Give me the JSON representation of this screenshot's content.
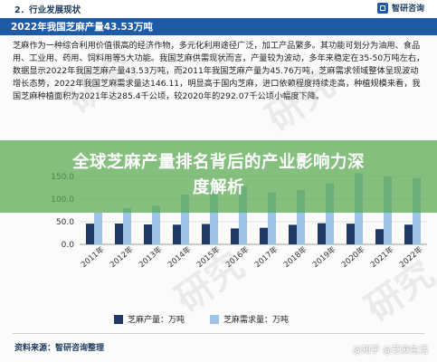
{
  "header": {
    "section_title": "2．行业发展现状",
    "brand": "智研咨询",
    "title": "2022年我国芝麻产量43.53万吨"
  },
  "body_text": "芝麻作为一种综合利用价值很高的经济作物，多元化利用途径广泛，加工产品繁多。其功能可划分为油用、食品用、工业用、药用、饲料用等5大功能。我国芝麻供需现状而言，产量较为波动，多年来稳定在35-50万吨左右，数据显示2022年我国芝麻产量43.53万吨，而2011年我国芝麻产量为45.76万吨，芝麻需求领域整体呈现波动增长态势，2022年我国芝麻需求量达146.11，明显高于国内芝麻，进口依赖程度持续走高，种植规模来看，我国芝麻种植面积为2021年达285.4千公顷，较2020年的292.07千公顷小幅度下降。",
  "overlay_title": "全球芝麻产量排名背后的产业影响力深度解析",
  "chart_data": {
    "type": "bar",
    "categories": [
      "2011年",
      "2012年",
      "2013年",
      "2014年",
      "2015年",
      "2016年",
      "2017年",
      "2018年",
      "2019年",
      "2020年",
      "2021年",
      "2022年"
    ],
    "series": [
      {
        "name": "芝麻产量：万吨",
        "values": [
          45.76,
          46.0,
          44.0,
          43.5,
          45.0,
          35.2,
          36.6,
          43.2,
          46.7,
          45.7,
          33.5,
          43.53
        ],
        "color": "#1f3864"
      },
      {
        "name": "芝麻需求量：万吨",
        "values": [
          70,
          80,
          85,
          110,
          125,
          128,
          115,
          120,
          135,
          157,
          150,
          146.11
        ],
        "color": "#9dc3e6"
      }
    ],
    "yticks": [
      0.0,
      50.0,
      100.0,
      150.0
    ],
    "ylim": [
      0,
      180
    ]
  },
  "footer": {
    "source": "资料来源：智研咨询整理",
    "watermark": "@知乎 @芝麻生活"
  },
  "watermark_text": "研究"
}
